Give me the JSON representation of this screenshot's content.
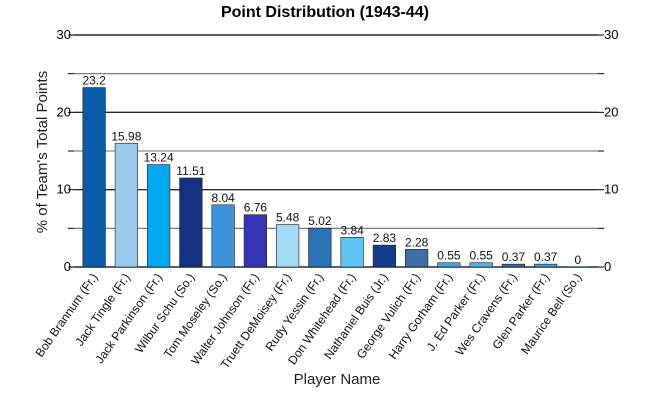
{
  "chart_data": {
    "type": "bar",
    "title": "Point Distribution (1943-44)",
    "xlabel": "Player Name",
    "ylabel": "% of Team's Total Points",
    "ylim": [
      0,
      30
    ],
    "yticks": [
      0,
      10,
      20,
      30
    ],
    "grid": true,
    "legend": "none",
    "categories": [
      "Bob Brannum (Fr.)",
      "Jack Tingle (Fr.)",
      "Jack Parkinson (Fr.)",
      "Wilbur Schu (So.)",
      "Tom Moseley (So.)",
      "Walter Johnson (Fr.)",
      "Truett DeMoisey (Fr.)",
      "Rudy Yessin (Fr.)",
      "Don Whitehead (Fr.)",
      "Nathaniel Buis (Jr.)",
      "George Vulich (Fr.)",
      "Harry Gorham (Fr.)",
      "J. Ed Parker (Fr.)",
      "Wes Cravens (Fr.)",
      "Glen Parker (Fr.)",
      "Maurice Bell (So.)"
    ],
    "values": [
      23.2,
      15.98,
      13.24,
      11.51,
      8.04,
      6.76,
      5.48,
      5.02,
      3.84,
      2.83,
      2.28,
      0.55,
      0.55,
      0.37,
      0.37,
      0
    ],
    "value_labels": [
      "23.2",
      "15.98",
      "13.24",
      "11.51",
      "8.04",
      "6.76",
      "5.48",
      "5.02",
      "3.84",
      "2.83",
      "2.28",
      "0.55",
      "0.55",
      "0.37",
      "0.37",
      "0"
    ],
    "colors": [
      "#0a5ca6",
      "#9ccbf0",
      "#03a9ec",
      "#12327f",
      "#3f93dc",
      "#3434b4",
      "#a4dcf6",
      "#2a72b6",
      "#5fc4f2",
      "#163c8e",
      "#3f6fa6",
      "#3fa6e6",
      "#4fb6f0",
      "#2f6ab0",
      "#3f9ee0",
      "#2a72b6"
    ]
  }
}
